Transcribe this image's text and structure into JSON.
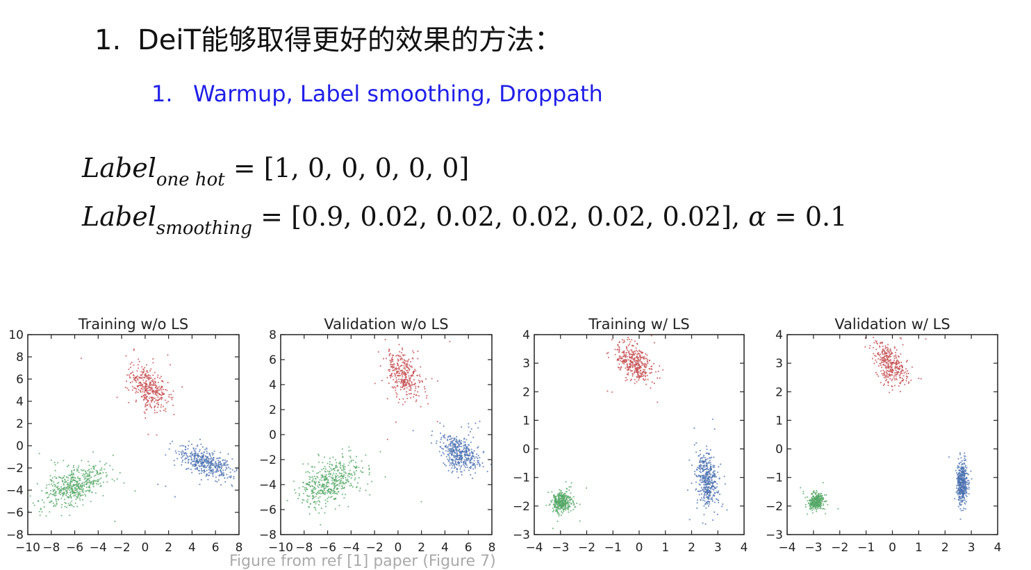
{
  "heading": {
    "number": "1.",
    "text": "DeiT能够取得更好的效果的方法："
  },
  "subheading": {
    "number": "1.",
    "text": "Warmup, Label smoothing, Droppath"
  },
  "equations": {
    "one_hot": {
      "lhs": "Label",
      "sub": "one hot",
      "rhs": "= [1, 0, 0, 0, 0, 0]"
    },
    "smoothing": {
      "lhs": "Label",
      "sub": "smoothing",
      "rhs": "= [0.9, 0.02, 0.02, 0.02, 0.02, 0.02], ",
      "alpha": "α",
      "alpha_rhs": " = 0.1"
    }
  },
  "caption": "Figure from ref [1] paper (Figure 7)",
  "colors": {
    "red": "#c44e52",
    "blue": "#4c72b0",
    "green": "#55a868",
    "heading": "#111111",
    "subheading": "#1f1fe8"
  },
  "chart_data": [
    {
      "type": "scatter",
      "title": "Training w/o LS",
      "xlim": [
        -10,
        8
      ],
      "ylim": [
        -8,
        10
      ],
      "xticks": [
        -10,
        -8,
        -6,
        -4,
        -2,
        0,
        2,
        4,
        6,
        8
      ],
      "yticks": [
        -8,
        -6,
        -4,
        -2,
        0,
        2,
        4,
        6,
        8,
        10
      ],
      "series": [
        {
          "color": "red",
          "center": [
            0.3,
            5.2
          ],
          "spread": [
            0.75,
            1.05
          ],
          "rho": -0.45,
          "count": 360
        },
        {
          "color": "blue",
          "center": [
            5.2,
            -1.6
          ],
          "spread": [
            1.1,
            0.7
          ],
          "rho": -0.55,
          "count": 420
        },
        {
          "color": "green",
          "center": [
            -6.0,
            -3.6
          ],
          "spread": [
            1.3,
            0.9
          ],
          "rho": 0.55,
          "count": 480
        }
      ]
    },
    {
      "type": "scatter",
      "title": "Validation w/o LS",
      "xlim": [
        -10,
        8
      ],
      "ylim": [
        -8,
        8
      ],
      "xticks": [
        -10,
        -8,
        -6,
        -4,
        -2,
        0,
        2,
        4,
        6,
        8
      ],
      "yticks": [
        -8,
        -6,
        -4,
        -2,
        0,
        2,
        4,
        6,
        8
      ],
      "series": [
        {
          "color": "red",
          "center": [
            0.5,
            4.8
          ],
          "spread": [
            0.75,
            1.0
          ],
          "rho": -0.4,
          "count": 330
        },
        {
          "color": "blue",
          "center": [
            5.3,
            -1.5
          ],
          "spread": [
            0.8,
            0.7
          ],
          "rho": -0.3,
          "count": 420
        },
        {
          "color": "green",
          "center": [
            -5.8,
            -3.8
          ],
          "spread": [
            1.3,
            0.95
          ],
          "rho": 0.45,
          "count": 460
        }
      ]
    },
    {
      "type": "scatter",
      "title": "Training w/ LS",
      "xlim": [
        -4,
        4
      ],
      "ylim": [
        -3,
        4
      ],
      "xticks": [
        -4,
        -3,
        -2,
        -1,
        0,
        1,
        2,
        3,
        4
      ],
      "yticks": [
        -3,
        -2,
        -1,
        0,
        1,
        2,
        3,
        4
      ],
      "series": [
        {
          "color": "red",
          "center": [
            -0.2,
            3.0
          ],
          "spread": [
            0.35,
            0.35
          ],
          "rho": -0.5,
          "count": 380
        },
        {
          "color": "blue",
          "center": [
            2.6,
            -1.1
          ],
          "spread": [
            0.2,
            0.5
          ],
          "rho": -0.3,
          "count": 420
        },
        {
          "color": "green",
          "center": [
            -2.95,
            -1.85
          ],
          "spread": [
            0.18,
            0.18
          ],
          "rho": 0.1,
          "count": 360
        }
      ]
    },
    {
      "type": "scatter",
      "title": "Validation w/ LS",
      "xlim": [
        -4,
        4
      ],
      "ylim": [
        -3,
        4
      ],
      "xticks": [
        -4,
        -3,
        -2,
        -1,
        0,
        1,
        2,
        3,
        4
      ],
      "yticks": [
        -3,
        -2,
        -1,
        0,
        1,
        2,
        3,
        4
      ],
      "series": [
        {
          "color": "red",
          "center": [
            -0.05,
            2.95
          ],
          "spread": [
            0.32,
            0.38
          ],
          "rho": -0.45,
          "count": 340
        },
        {
          "color": "blue",
          "center": [
            2.65,
            -1.2
          ],
          "spread": [
            0.1,
            0.35
          ],
          "rho": 0.0,
          "count": 420
        },
        {
          "color": "green",
          "center": [
            -2.9,
            -1.85
          ],
          "spread": [
            0.14,
            0.15
          ],
          "rho": 0.1,
          "count": 330
        }
      ]
    }
  ]
}
